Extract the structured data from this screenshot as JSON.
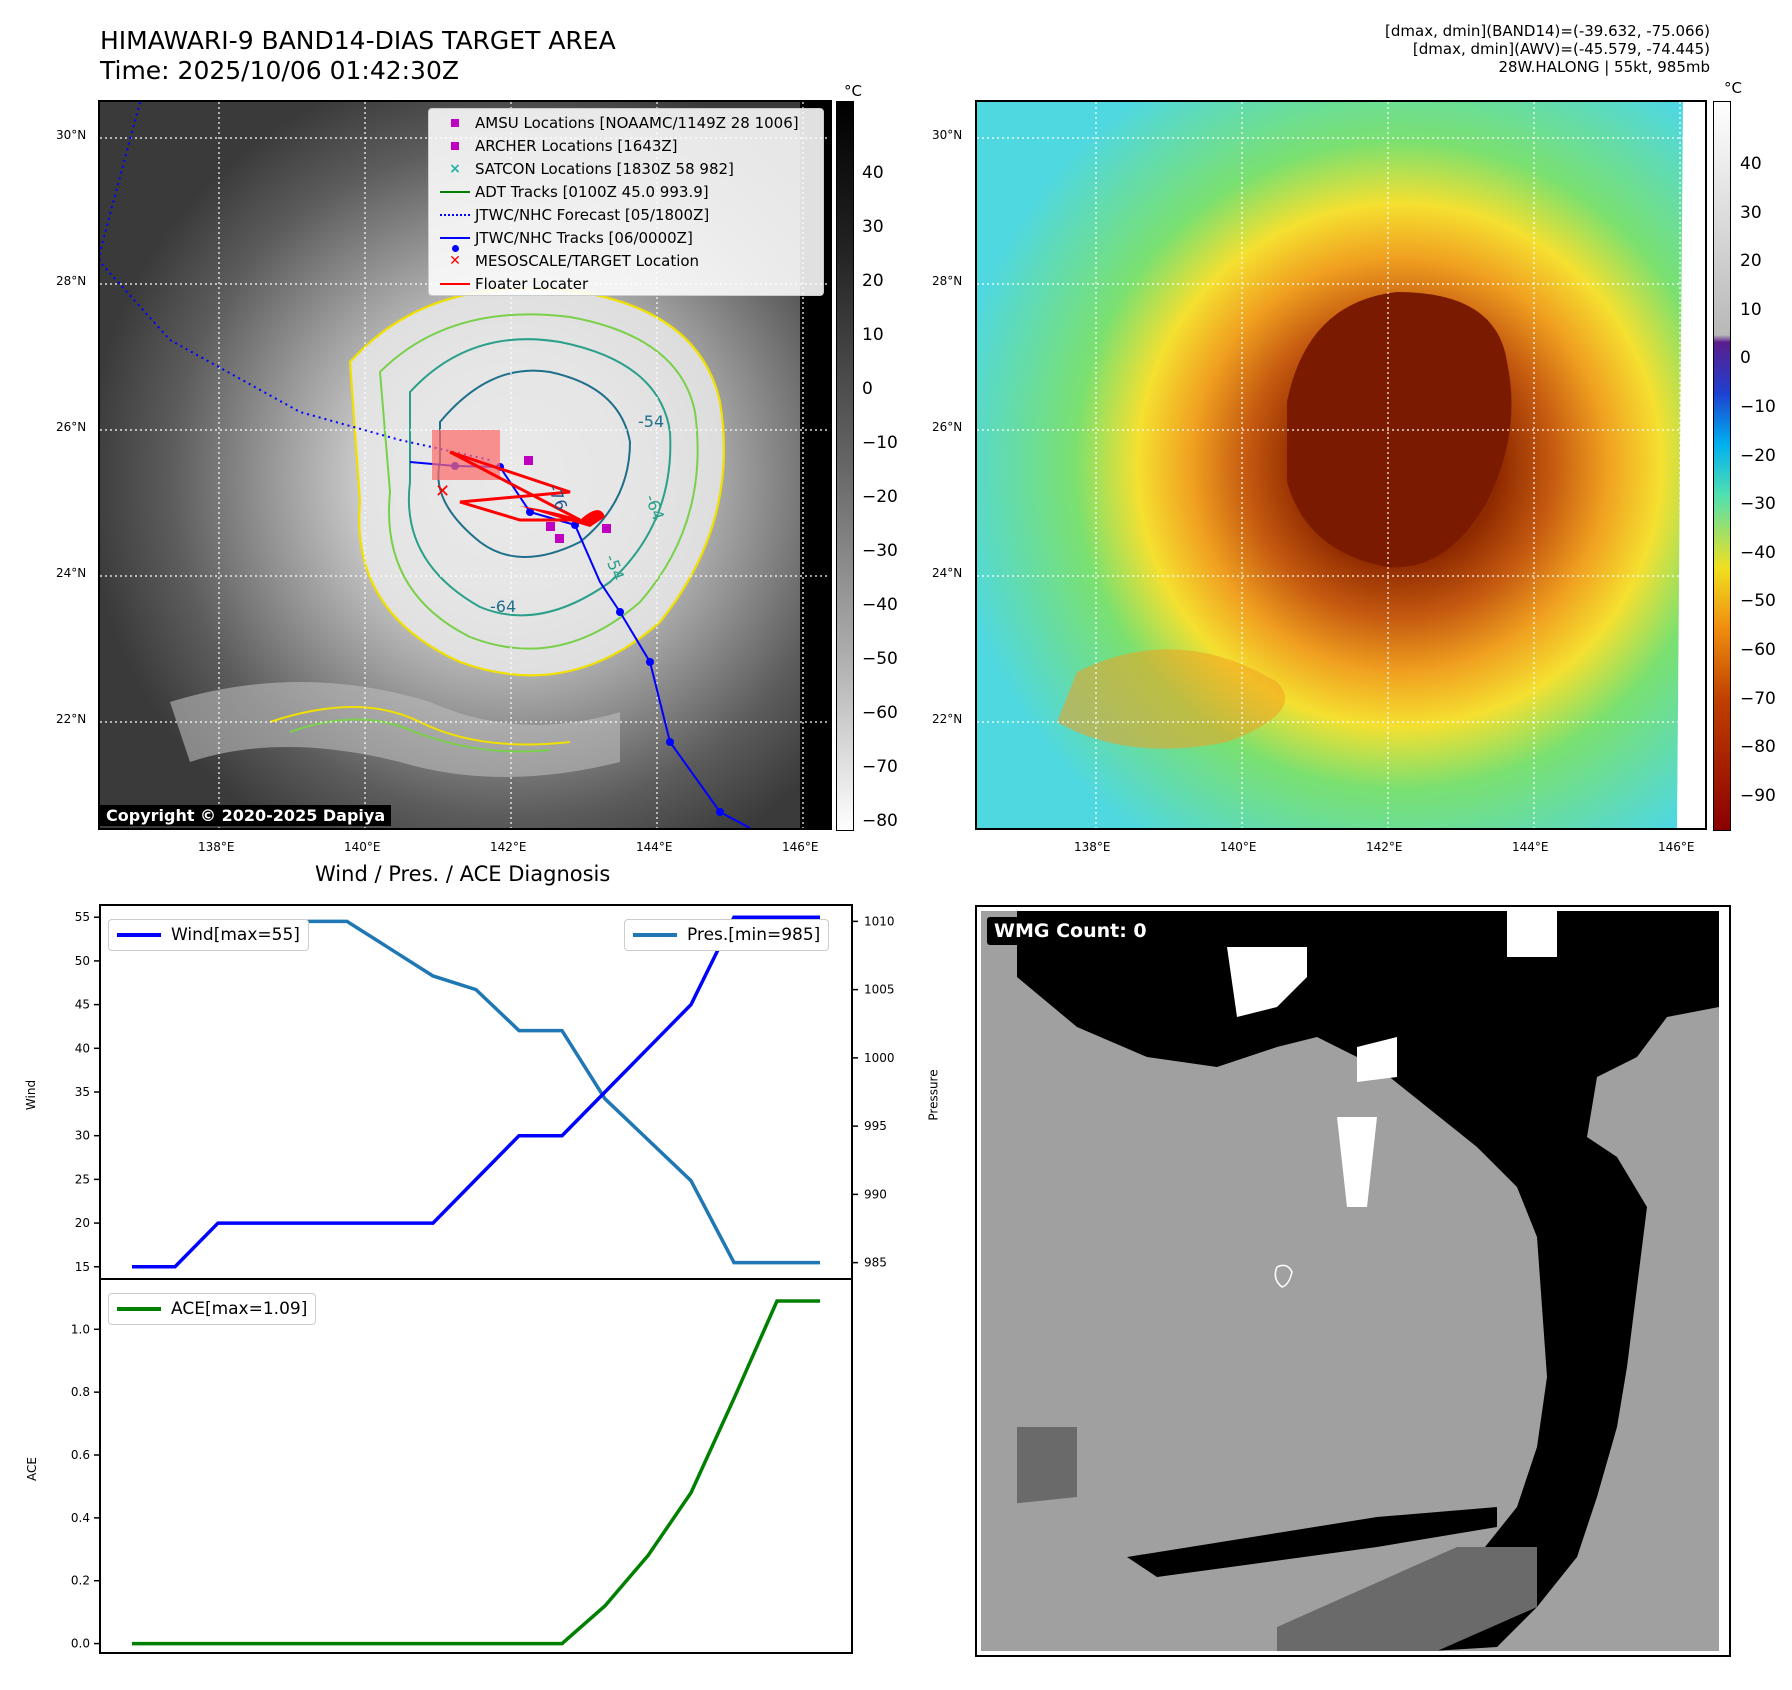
{
  "header": {
    "title_line1": "HIMAWARI-9 BAND14-DIAS TARGET AREA",
    "title_line2": "Time: 2025/10/06 01:42:30Z",
    "info_line1": "[dmax, dmin](BAND14)=(-39.632, -75.066)",
    "info_line2": "[dmax, dmin](AWV)=(-45.579, -74.445)",
    "info_line3": "28W.HALONG | 55kt, 985mb"
  },
  "map_axes": {
    "lat_labels": [
      "30°N",
      "28°N",
      "26°N",
      "24°N",
      "22°N"
    ],
    "lon_labels": [
      "138°E",
      "140°E",
      "142°E",
      "144°E",
      "146°E"
    ]
  },
  "colorbar_left": {
    "unit": "°C",
    "ticks": [
      "40",
      "30",
      "20",
      "10",
      "0",
      "−10",
      "−20",
      "−30",
      "−40",
      "−50",
      "−60",
      "−70",
      "−80"
    ]
  },
  "colorbar_right": {
    "unit": "°C",
    "ticks": [
      "40",
      "30",
      "20",
      "10",
      "0",
      "−10",
      "−20",
      "−30",
      "−40",
      "−50",
      "−60",
      "−70",
      "−80",
      "−90"
    ]
  },
  "legend": [
    {
      "label": "AMSU Locations [NOAAMC/1149Z 28 1006]",
      "symbol": "square",
      "color": "#c000c0"
    },
    {
      "label": "ARCHER Locations [1643Z]",
      "symbol": "square",
      "color": "#c000c0"
    },
    {
      "label": "SATCON Locations [1830Z 58 982]",
      "symbol": "cross",
      "color": "#20b2aa"
    },
    {
      "label": "ADT Tracks [0100Z 45.0 993.9]",
      "symbol": "line",
      "color": "#008000"
    },
    {
      "label": "JTWC/NHC Forecast [05/1800Z]",
      "symbol": "dotted",
      "color": "#0000ff"
    },
    {
      "label": "JTWC/NHC Tracks [06/0000Z]",
      "symbol": "line-dot",
      "color": "#0000ff"
    },
    {
      "label": "MESOSCALE/TARGET Location",
      "symbol": "x",
      "color": "#ff0000"
    },
    {
      "label": "Floater Locater",
      "symbol": "line",
      "color": "#ff0000"
    }
  ],
  "contour_labels": [
    "-54",
    "-76",
    "-64",
    "-54",
    "-64"
  ],
  "copyright": "Copyright © 2020-2025 Dapiya",
  "wmg": {
    "label": "WMG Count: 0"
  },
  "colors": {
    "wind": "#0000ff",
    "pressure": "#1f77b4",
    "ace": "#008000"
  },
  "chart_data": [
    {
      "type": "line",
      "title": "Wind / Pres. / ACE Diagnosis",
      "x": [
        0,
        1,
        2,
        3,
        4,
        5,
        6,
        7,
        8,
        9,
        10,
        11,
        12,
        13,
        14,
        15,
        16
      ],
      "series": [
        {
          "name": "Wind",
          "legend": "Wind[max=55]",
          "axis": "left",
          "values": [
            15,
            15,
            20,
            20,
            20,
            20,
            20,
            20,
            25,
            30,
            30,
            35,
            40,
            45,
            55,
            55,
            55
          ]
        },
        {
          "name": "Pressure",
          "legend": "Pres.[min=985]",
          "axis": "right",
          "values": [
            1009,
            1009,
            1009,
            1010,
            1010,
            1010,
            1008,
            1006,
            1005,
            1002,
            1002,
            997,
            994,
            991,
            985,
            985,
            985
          ]
        }
      ],
      "ylabel_left": "Wind",
      "ylabel_right": "Pressure",
      "ylim_left": [
        13.6,
        56.4
      ],
      "ylim_right": [
        983.8,
        1011.2
      ],
      "left_ticks": [
        15,
        20,
        25,
        30,
        35,
        40,
        45,
        50,
        55
      ],
      "right_ticks": [
        985,
        990,
        995,
        1000,
        1005,
        1010
      ]
    },
    {
      "type": "line",
      "title": "",
      "x": [
        0,
        1,
        2,
        3,
        4,
        5,
        6,
        7,
        8,
        9,
        10,
        11,
        12,
        13,
        14,
        15,
        16
      ],
      "series": [
        {
          "name": "ACE",
          "legend": "ACE[max=1.09]",
          "values": [
            0,
            0,
            0,
            0,
            0,
            0,
            0,
            0,
            0,
            0,
            0,
            0.12,
            0.28,
            0.48,
            0.78,
            1.09,
            1.09
          ]
        }
      ],
      "ylabel": "ACE",
      "ylim": [
        -0.03,
        1.16
      ],
      "ticks": [
        0.0,
        0.2,
        0.4,
        0.6,
        0.8,
        1.0
      ]
    }
  ]
}
